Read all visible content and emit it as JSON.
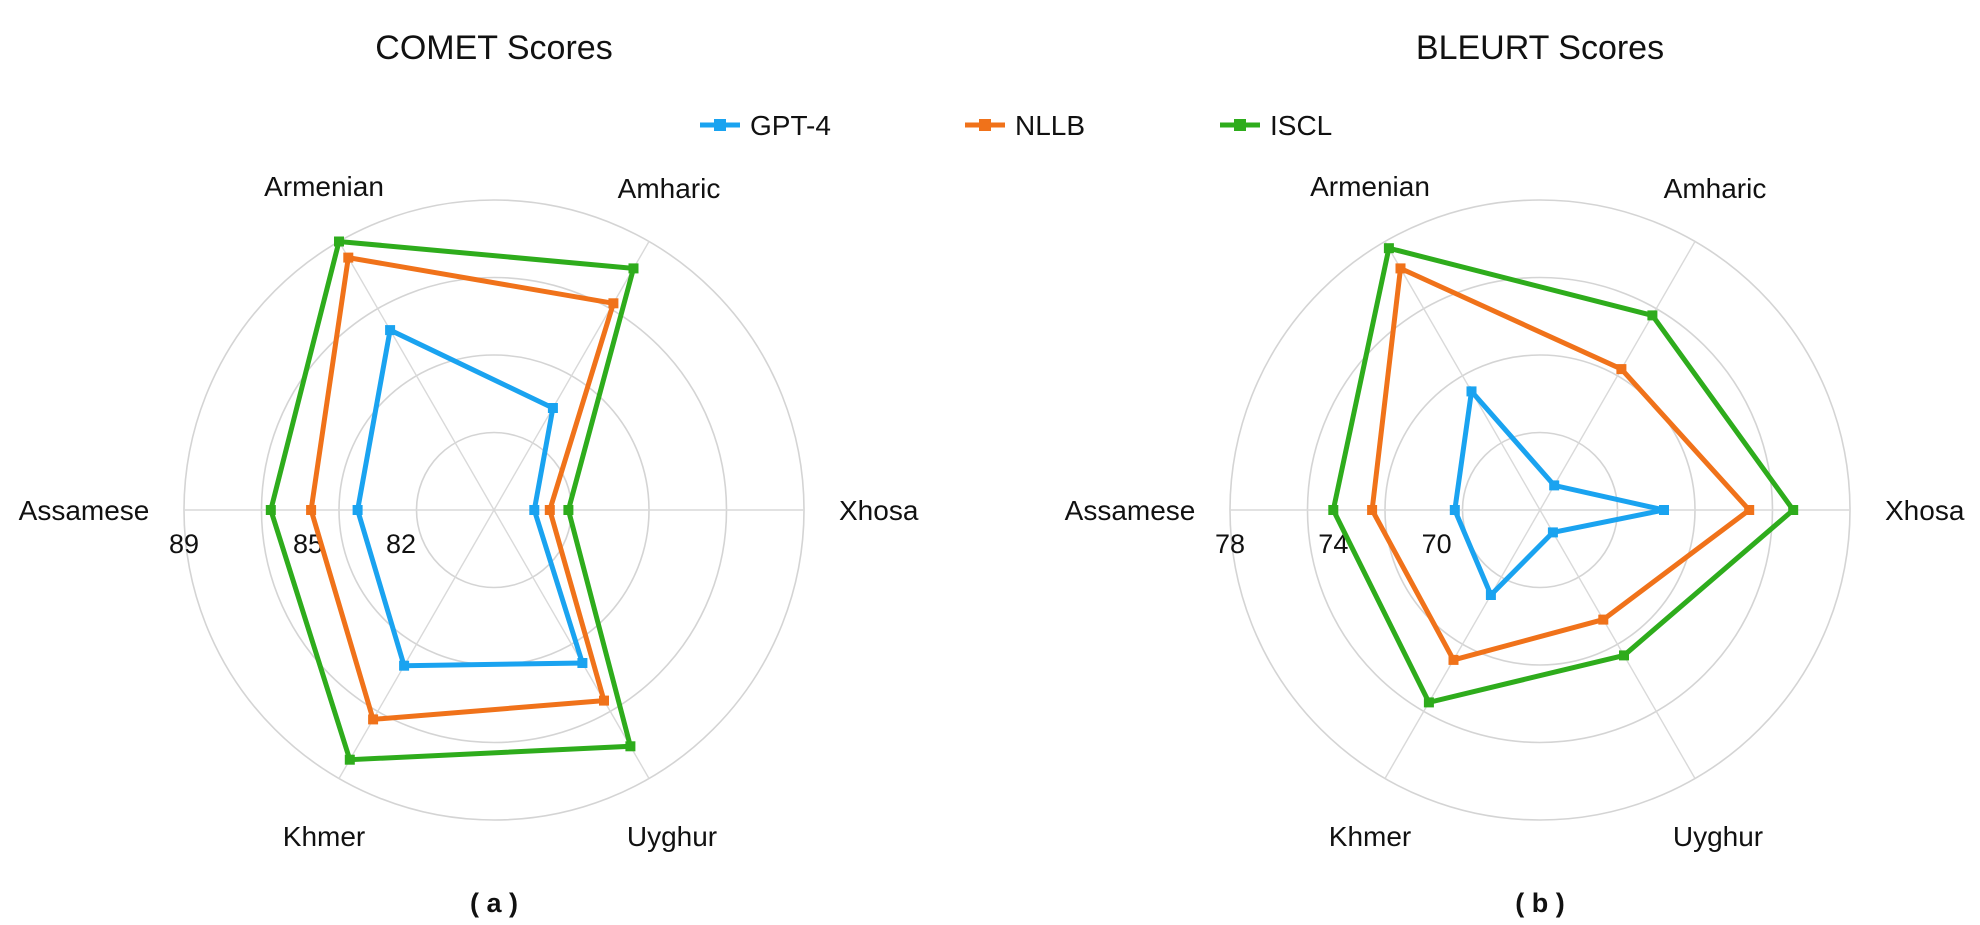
{
  "legend": [
    {
      "name": "GPT-4",
      "color": "#1aa3f0"
    },
    {
      "name": "NLLB",
      "color": "#f0721a"
    },
    {
      "name": "ISCL",
      "color": "#2eac1c"
    }
  ],
  "chart_data": [
    {
      "type": "radar",
      "title": "COMET Scores",
      "panel_label": "( a )",
      "categories": [
        "Xhosa",
        "Amharic",
        "Armenian",
        "Assamese",
        "Khmer",
        "Uyghur"
      ],
      "range": [
        79,
        89
      ],
      "ticks": [
        {
          "value": 82,
          "label": "82"
        },
        {
          "value": 85,
          "label": "85"
        },
        {
          "value": 89,
          "label": "89"
        }
      ],
      "grid": true,
      "series": [
        {
          "name": "GPT-4",
          "values": [
            80.3,
            82.8,
            85.7,
            83.4,
            84.8,
            84.7
          ]
        },
        {
          "name": "NLLB",
          "values": [
            80.8,
            86.7,
            88.4,
            84.9,
            86.8,
            86.1
          ]
        },
        {
          "name": "ISCL",
          "values": [
            81.4,
            88.0,
            89.0,
            86.2,
            88.3,
            87.8
          ]
        }
      ]
    },
    {
      "type": "radar",
      "title": "BLEURT Scores",
      "panel_label": "( b )",
      "categories": [
        "Xhosa",
        "Amharic",
        "Armenian",
        "Assamese",
        "Khmer",
        "Uyghur"
      ],
      "range": [
        66,
        78
      ],
      "ticks": [
        {
          "value": 70,
          "label": "70"
        },
        {
          "value": 74,
          "label": "74"
        },
        {
          "value": 78,
          "label": "78"
        }
      ],
      "grid": true,
      "series": [
        {
          "name": "GPT-4",
          "values": [
            70.8,
            67.1,
            71.3,
            69.3,
            69.8,
            67.0
          ]
        },
        {
          "name": "NLLB",
          "values": [
            74.1,
            72.3,
            76.8,
            72.5,
            72.7,
            70.9
          ]
        },
        {
          "name": "ISCL",
          "values": [
            75.8,
            74.7,
            77.7,
            74.0,
            74.6,
            72.5
          ]
        }
      ]
    }
  ]
}
